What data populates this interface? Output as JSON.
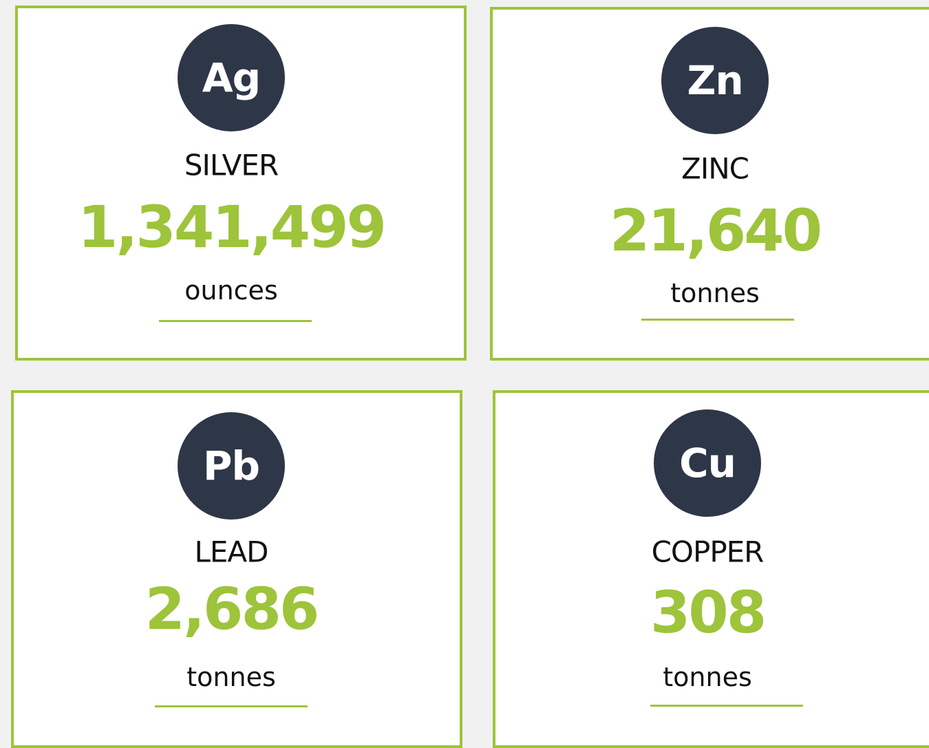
{
  "cards": [
    {
      "symbol": "Ag",
      "name": "SILVER",
      "value": "1,341,499",
      "unit": "ounces"
    },
    {
      "symbol": "Zn",
      "name": "ZINC",
      "value": "21,640",
      "unit": "tonnes"
    },
    {
      "symbol": "Pb",
      "name": "LEAD",
      "value": "2,686",
      "unit": "tonnes"
    },
    {
      "symbol": "Cu",
      "name": "COPPER",
      "value": "308",
      "unit": "tonnes"
    }
  ]
}
